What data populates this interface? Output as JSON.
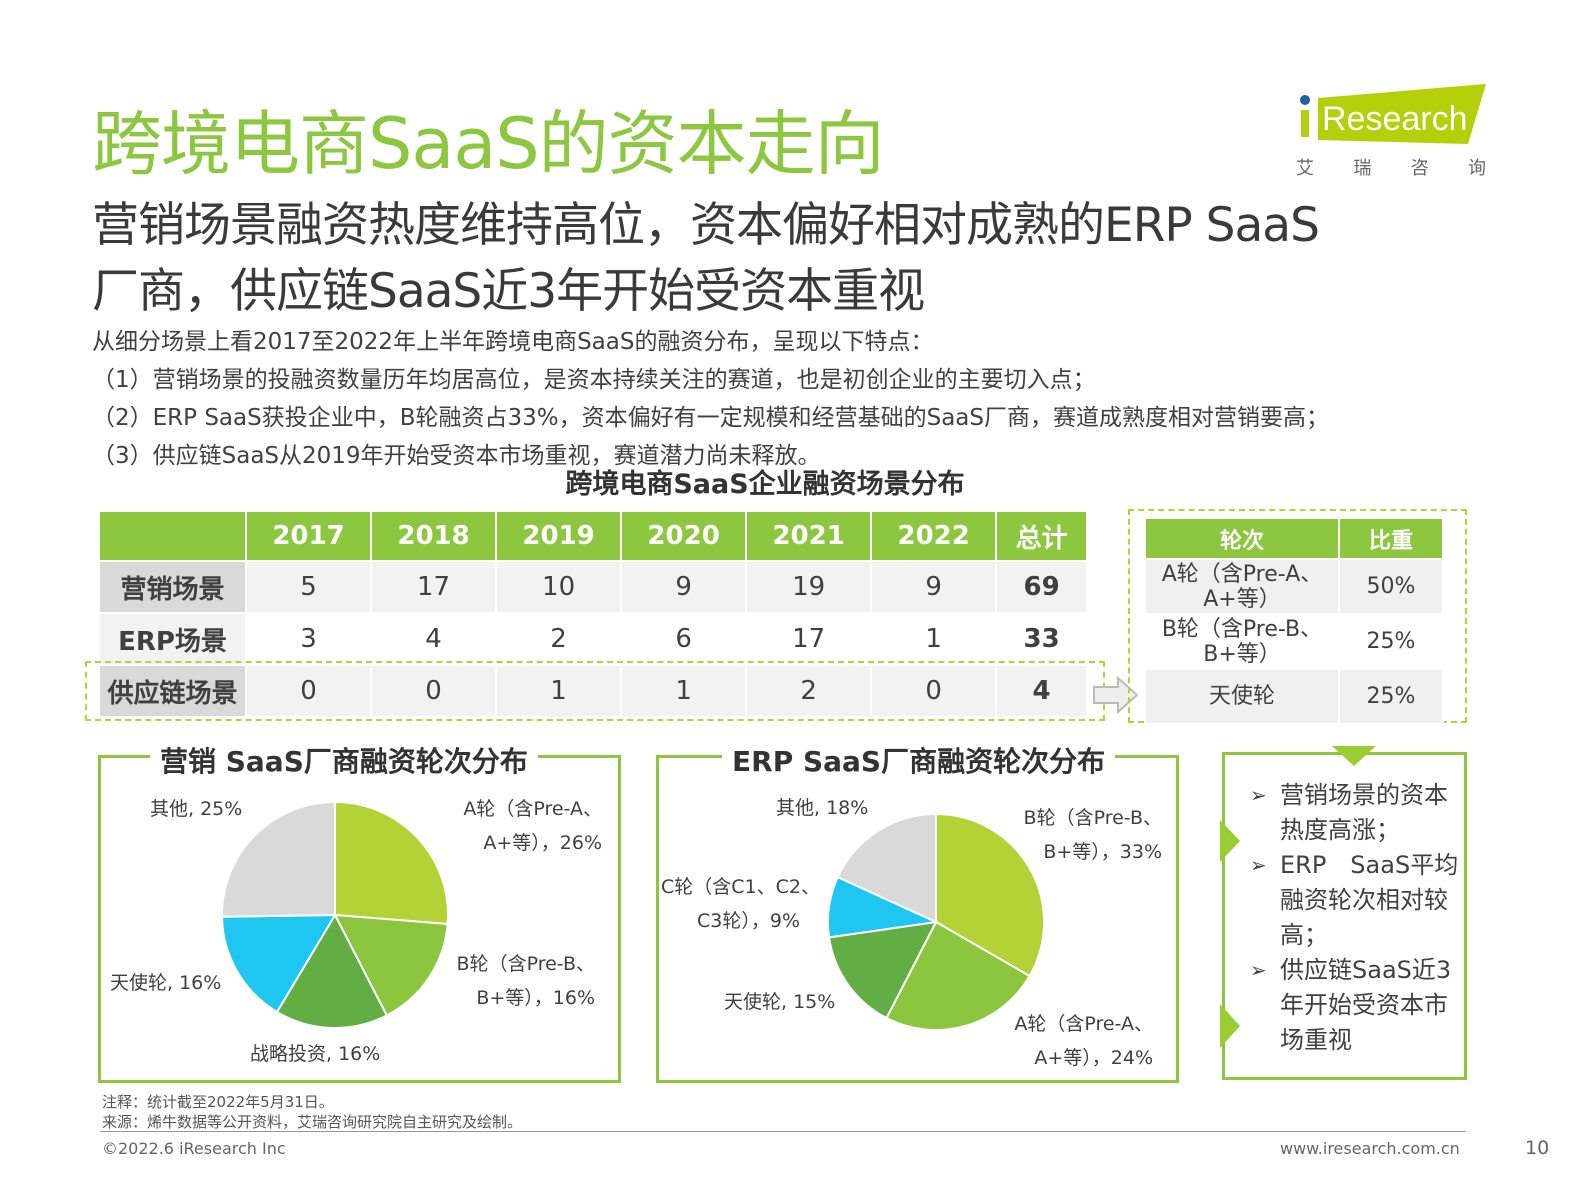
{
  "header": {
    "title": "跨境电商SaaS的资本走向",
    "subtitle_lines": [
      "营销场景融资热度维持高位，资本偏好相对成熟的ERP SaaS",
      "厂商，供应链SaaS近3年开始受资本重视"
    ],
    "logo": {
      "brand": "iResearch",
      "cn": [
        "艾",
        "瑞",
        "咨",
        "询"
      ]
    }
  },
  "body_lines": [
    "从细分场景上看2017至2022年上半年跨境电商SaaS的融资分布，呈现以下特点：",
    "（1）营销场景的投融资数量历年均居高位，是资本持续关注的赛道，也是初创企业的主要切入点；",
    "（2）ERP SaaS获投企业中，B轮融资占33%，资本偏好有一定规模和经营基础的SaaS厂商，赛道成熟度相对营销要高；",
    "（3）供应链SaaS从2019年开始受资本市场重视，赛道潜力尚未释放。"
  ],
  "scene_table": {
    "title": "跨境电商SaaS企业融资场景分布",
    "columns": [
      "",
      "2017",
      "2018",
      "2019",
      "2020",
      "2021",
      "2022",
      "总计"
    ],
    "rows": [
      {
        "label": "营销场景",
        "values": [
          "5",
          "17",
          "10",
          "9",
          "19",
          "9",
          "69"
        ]
      },
      {
        "label": "ERP场景",
        "values": [
          "3",
          "4",
          "2",
          "6",
          "17",
          "1",
          "33"
        ]
      },
      {
        "label": "供应链场景",
        "values": [
          "0",
          "0",
          "1",
          "1",
          "2",
          "0",
          "4"
        ]
      }
    ]
  },
  "round_table": {
    "columns": [
      "轮次",
      "比重"
    ],
    "rows": [
      {
        "round": "A轮（含Pre-A、A+等）",
        "share": "50%"
      },
      {
        "round": "B轮（含Pre-B、B+等）",
        "share": "25%"
      },
      {
        "round": "天使轮",
        "share": "25%"
      }
    ]
  },
  "chart_data": [
    {
      "type": "pie",
      "title": "营销 SaaS厂商融资轮次分布",
      "slices": [
        {
          "label": "A轮（含Pre-A、A+等），26%",
          "value": 26,
          "color": "#b2d235"
        },
        {
          "label": "B轮（含Pre-B、B+等），16%",
          "value": 16,
          "color": "#8cc63f"
        },
        {
          "label": "战略投资, 16%",
          "value": 16,
          "color": "#63ad45"
        },
        {
          "label": "天使轮, 16%",
          "value": 16,
          "color": "#1fc7f0"
        },
        {
          "label": "其他, 25%",
          "value": 25,
          "color": "#d9d9d9"
        }
      ]
    },
    {
      "type": "pie",
      "title": "ERP SaaS厂商融资轮次分布",
      "slices": [
        {
          "label": "B轮（含Pre-B、B+等），33%",
          "value": 33,
          "color": "#b2d235"
        },
        {
          "label": "A轮（含Pre-A、A+等），24%",
          "value": 24,
          "color": "#8cc63f"
        },
        {
          "label": "天使轮, 15%",
          "value": 15,
          "color": "#63ad45"
        },
        {
          "label": "C轮（含C1、C2、C3轮），9%",
          "value": 9,
          "color": "#1fc7f0"
        },
        {
          "label": "其他, 18%",
          "value": 18,
          "color": "#d9d9d9"
        }
      ]
    }
  ],
  "pie_labels": {
    "mkt": {
      "a1": "A轮（含Pre-A、",
      "a2": "A+等），26%",
      "b1": "B轮（含Pre-B、",
      "b2": "B+等），16%",
      "s": "战略投资, 16%",
      "t": "天使轮, 16%",
      "o": "其他, 25%"
    },
    "erp": {
      "b1": "B轮（含Pre-B、",
      "b2": "B+等），33%",
      "a1": "A轮（含Pre-A、",
      "a2": "A+等），24%",
      "t": "天使轮, 15%",
      "c1": "C轮（含C1、C2、",
      "c2": "C3轮），9%",
      "o": "其他, 18%"
    }
  },
  "summary": [
    "营销场景的资本热度高涨；",
    "ERP　SaaS平均融资轮次相对较高；",
    "供应链SaaS近3年开始受资本市场重视"
  ],
  "footer": {
    "note": "注释：统计截至2022年5月31日。",
    "source": "来源：烯牛数据等公开资料，艾瑞咨询研究院自主研究及绘制。",
    "copyright": "©2022.6 iResearch Inc",
    "website": "www.iresearch.com.cn",
    "page": "10"
  },
  "colors": {
    "brand_green": "#8dc63f",
    "light_green": "#b2d235",
    "cyan": "#1fc7f0",
    "gray": "#d9d9d9",
    "logo_blue": "#1e5fa8"
  }
}
